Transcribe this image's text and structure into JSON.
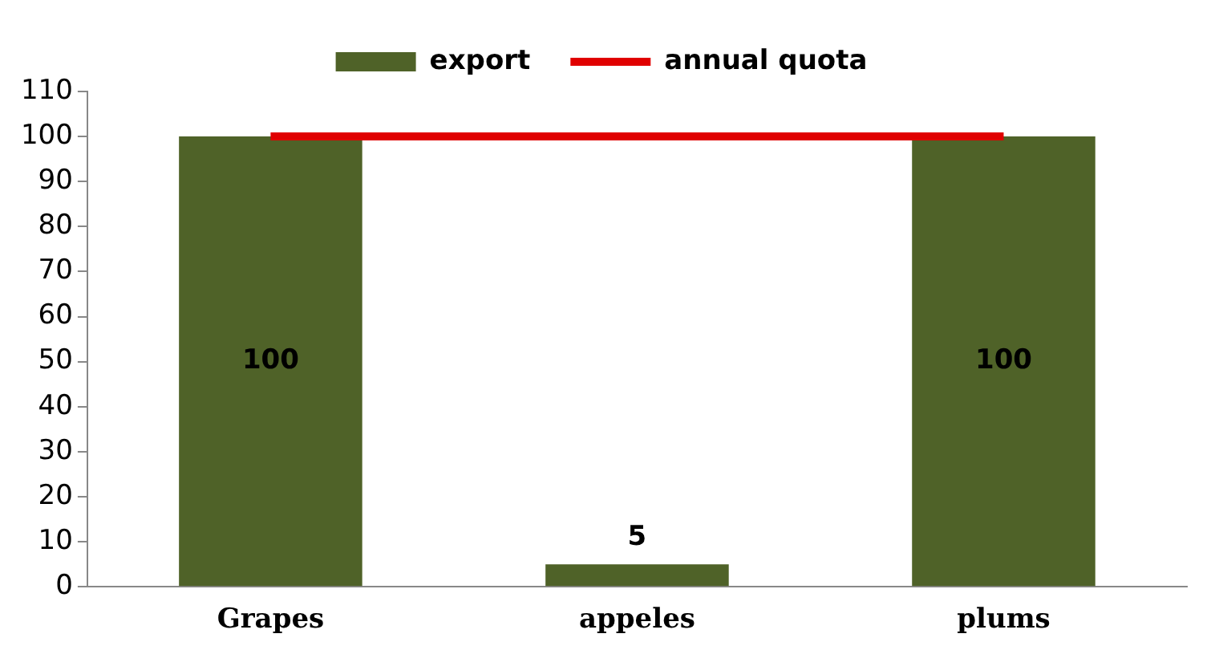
{
  "chart_data": {
    "type": "bar",
    "categories": [
      "Grapes",
      "appeles",
      "plums"
    ],
    "series": [
      {
        "name": "export",
        "color": "#4f6228",
        "values": [
          100,
          5,
          100
        ],
        "value_labels": [
          "100",
          "5",
          "100"
        ]
      },
      {
        "name": "annual quota",
        "type": "line",
        "color": "#e00000",
        "values": [
          100,
          100,
          100
        ]
      }
    ],
    "ylim": [
      0,
      110
    ],
    "yticks": [
      0,
      10,
      20,
      30,
      40,
      50,
      60,
      70,
      80,
      90,
      100,
      110
    ],
    "grid": false,
    "legend": "top",
    "marker": "none"
  }
}
